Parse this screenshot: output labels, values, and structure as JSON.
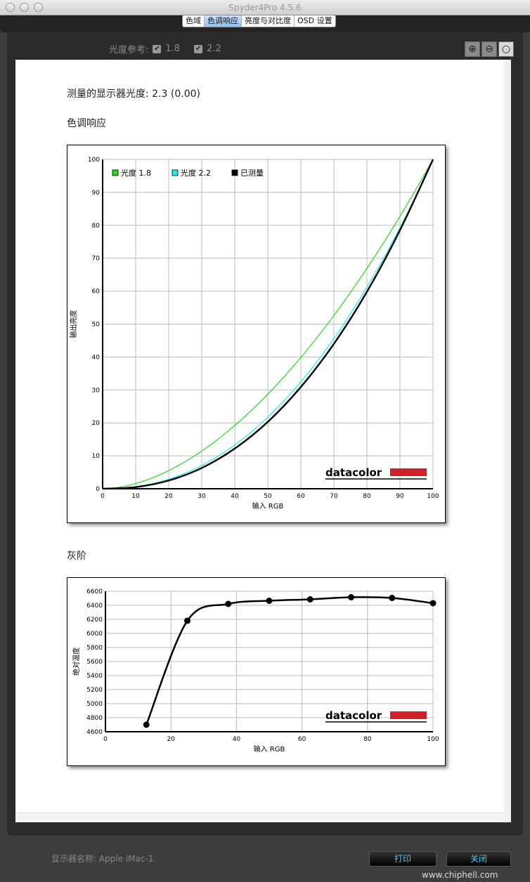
{
  "window": {
    "title": "Spyder4Pro 4.5.6"
  },
  "tabs": [
    {
      "label": "色域"
    },
    {
      "label": "色调响应",
      "active": true
    },
    {
      "label": "亮度与对比度"
    },
    {
      "label": "OSD 设置"
    }
  ],
  "reference": {
    "label": "光度参考:",
    "options": [
      {
        "label": "1.8",
        "checked": true
      },
      {
        "label": "2.2",
        "checked": true
      }
    ]
  },
  "zoom": {
    "in": "zoom-in-icon",
    "out": "zoom-out-icon",
    "fit": "zoom-fit-icon"
  },
  "measured_gamma": {
    "label": "测量的显示器光度:",
    "value": "2.3 (0.00)"
  },
  "sections": {
    "tone": "色调响应",
    "gray": "灰阶"
  },
  "chart_data": [
    {
      "type": "line",
      "xlabel": "输入 RGB",
      "ylabel": "输出亮度",
      "xlim": [
        0,
        100
      ],
      "ylim": [
        0,
        100
      ],
      "grid": true,
      "xticks": [
        "0",
        "10",
        "20",
        "30",
        "40",
        "50",
        "60",
        "70",
        "80",
        "90",
        "100"
      ],
      "yticks": [
        "0",
        "10",
        "20",
        "30",
        "40",
        "50",
        "60",
        "70",
        "80",
        "90",
        "100"
      ],
      "legend_position": "top-left",
      "series": [
        {
          "name": "光度 1.8",
          "color": "#22dd22",
          "gamma": 1.8
        },
        {
          "name": "光度 2.2",
          "color": "#22eeee",
          "gamma": 2.2
        },
        {
          "name": "已测量",
          "color": "#000000",
          "x": [
            0,
            10,
            20,
            30,
            40,
            50,
            60,
            70,
            80,
            90,
            100
          ],
          "y": [
            0,
            0.5,
            2.5,
            6.3,
            12.2,
            20.3,
            30.9,
            44.0,
            59.8,
            78.5,
            100
          ]
        }
      ],
      "logo": "datacolor"
    },
    {
      "type": "line",
      "xlabel": "输入 RGB",
      "ylabel": "绝对温度",
      "xlim": [
        0,
        100
      ],
      "ylim": [
        4600,
        6600
      ],
      "grid": true,
      "xticks": [
        "0",
        "20",
        "40",
        "60",
        "80",
        "100"
      ],
      "yticks": [
        "4600",
        "4800",
        "5000",
        "5200",
        "5400",
        "5600",
        "5800",
        "6000",
        "6200",
        "6400",
        "6600"
      ],
      "series": [
        {
          "color": "#000000",
          "x": [
            12.5,
            25,
            37.5,
            50,
            62.5,
            75,
            87.5,
            100
          ],
          "y": [
            4700,
            6180,
            6420,
            6465,
            6485,
            6515,
            6505,
            6430
          ]
        }
      ],
      "logo": "datacolor"
    }
  ],
  "footer": {
    "display_name": "显示器名称: Apple iMac-1",
    "print": "打印",
    "close": "关闭",
    "watermark": "www.chiphell.com"
  }
}
